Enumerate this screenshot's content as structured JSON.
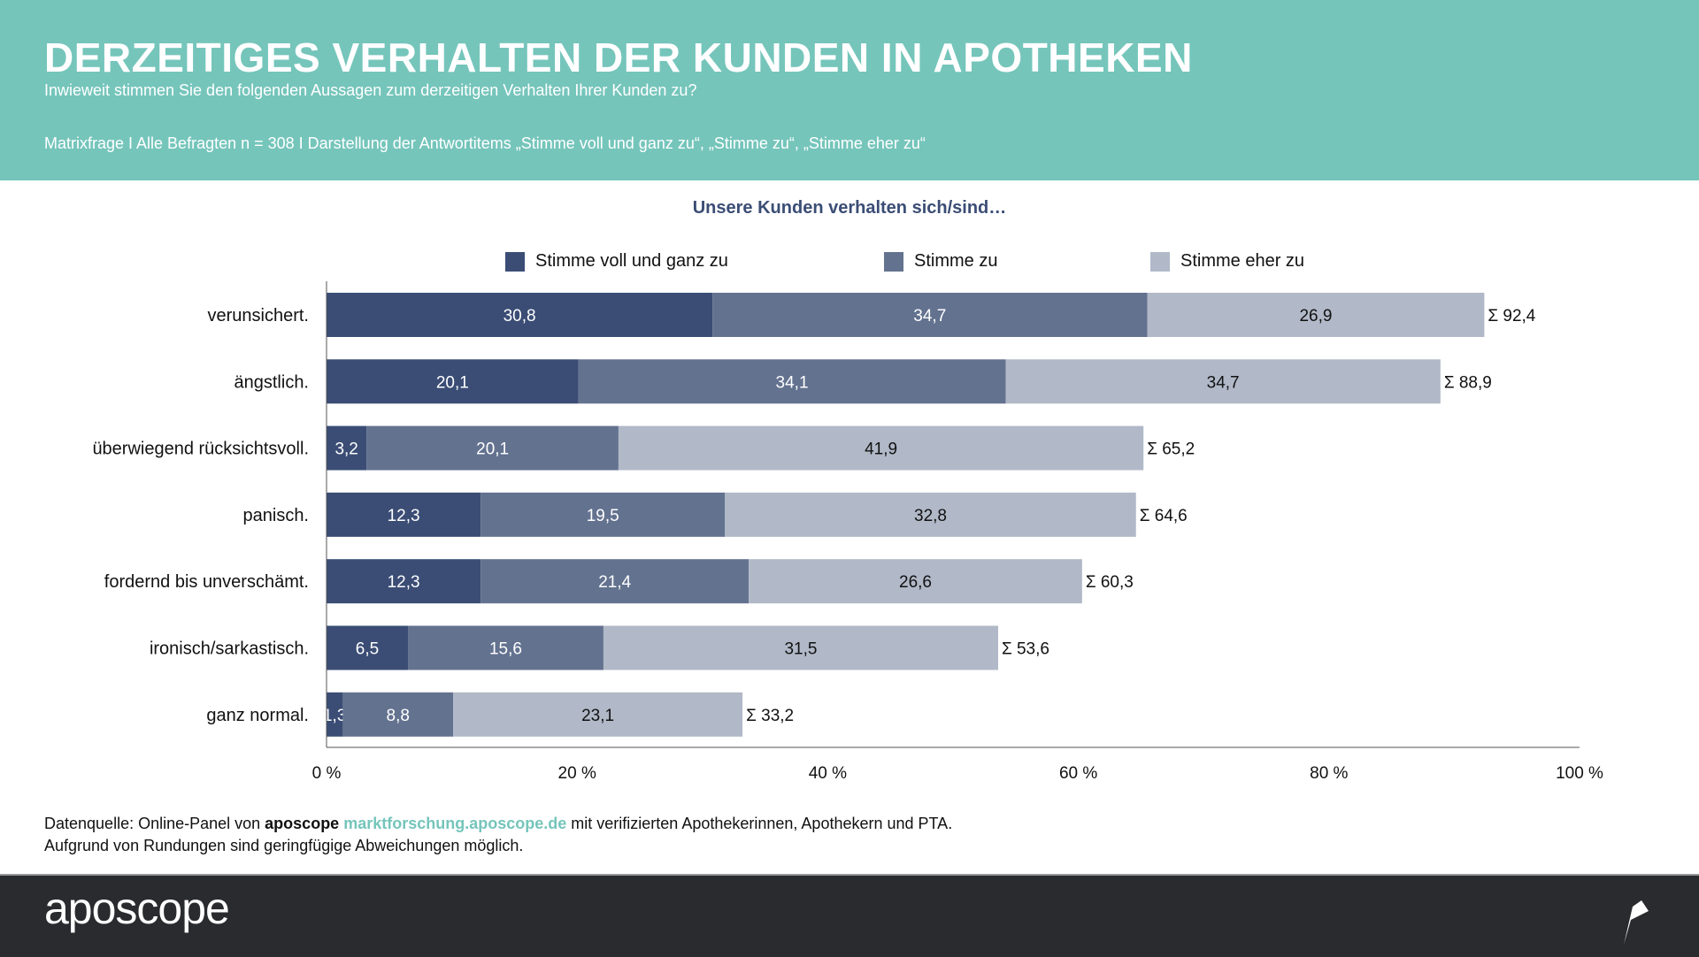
{
  "header": {
    "title": "DERZEITIGES VERHALTEN DER KUNDEN IN APOTHEKEN",
    "subtitle": "Inwieweit stimmen Sie den folgenden Aussagen zum derzeitigen Verhalten Ihrer Kunden zu?",
    "note": "Matrixfrage I Alle Befragten n = 308 I Darstellung der Antwortitems „Stimme voll und ganz zu“, „Stimme zu“, „Stimme eher zu“"
  },
  "colors": {
    "header": "#75c5bb",
    "footer": "#2a2b2f",
    "series": [
      "#3b4d75",
      "#63728f",
      "#b1b9c8"
    ]
  },
  "chart_data": {
    "type": "bar",
    "orientation": "horizontal",
    "stacked": true,
    "title": "Unsere Kunden verhalten sich/sind…",
    "categories": [
      "verunsichert.",
      "ängstlich.",
      "überwiegend rücksichtsvoll.",
      "panisch.",
      "fordernd bis unverschämt.",
      "ironisch/sarkastisch.",
      "ganz normal."
    ],
    "series": [
      {
        "name": "Stimme voll und ganz zu",
        "values": [
          30.8,
          20.1,
          3.2,
          12.3,
          12.3,
          6.5,
          1.3
        ]
      },
      {
        "name": "Stimme zu",
        "values": [
          34.7,
          34.1,
          20.1,
          19.5,
          21.4,
          15.6,
          8.8
        ]
      },
      {
        "name": "Stimme eher zu",
        "values": [
          26.9,
          34.7,
          41.9,
          32.8,
          26.6,
          31.5,
          23.1
        ]
      }
    ],
    "totals": [
      "Σ 92,4",
      "Σ 88,9",
      "Σ 65,2",
      "Σ 64,6",
      "Σ 60,3",
      "Σ 53,6",
      "Σ 33,2"
    ],
    "xlim": [
      0,
      100
    ],
    "xticks": [
      "0 %",
      "20 %",
      "40 %",
      "60 %",
      "80 %",
      "100 %"
    ],
    "legend": "top",
    "grid": false
  },
  "source": {
    "prefix": "Datenquelle: Online-Panel von ",
    "brand": "aposcope",
    "link": "marktforschung.aposcope.de",
    "suffix": " mit verifizierten Apothekerinnen, Apothekern und PTA.",
    "line2": "Aufgrund von Rundungen sind geringfügige Abweichungen möglich."
  },
  "footer": {
    "logo": "aposcope"
  }
}
